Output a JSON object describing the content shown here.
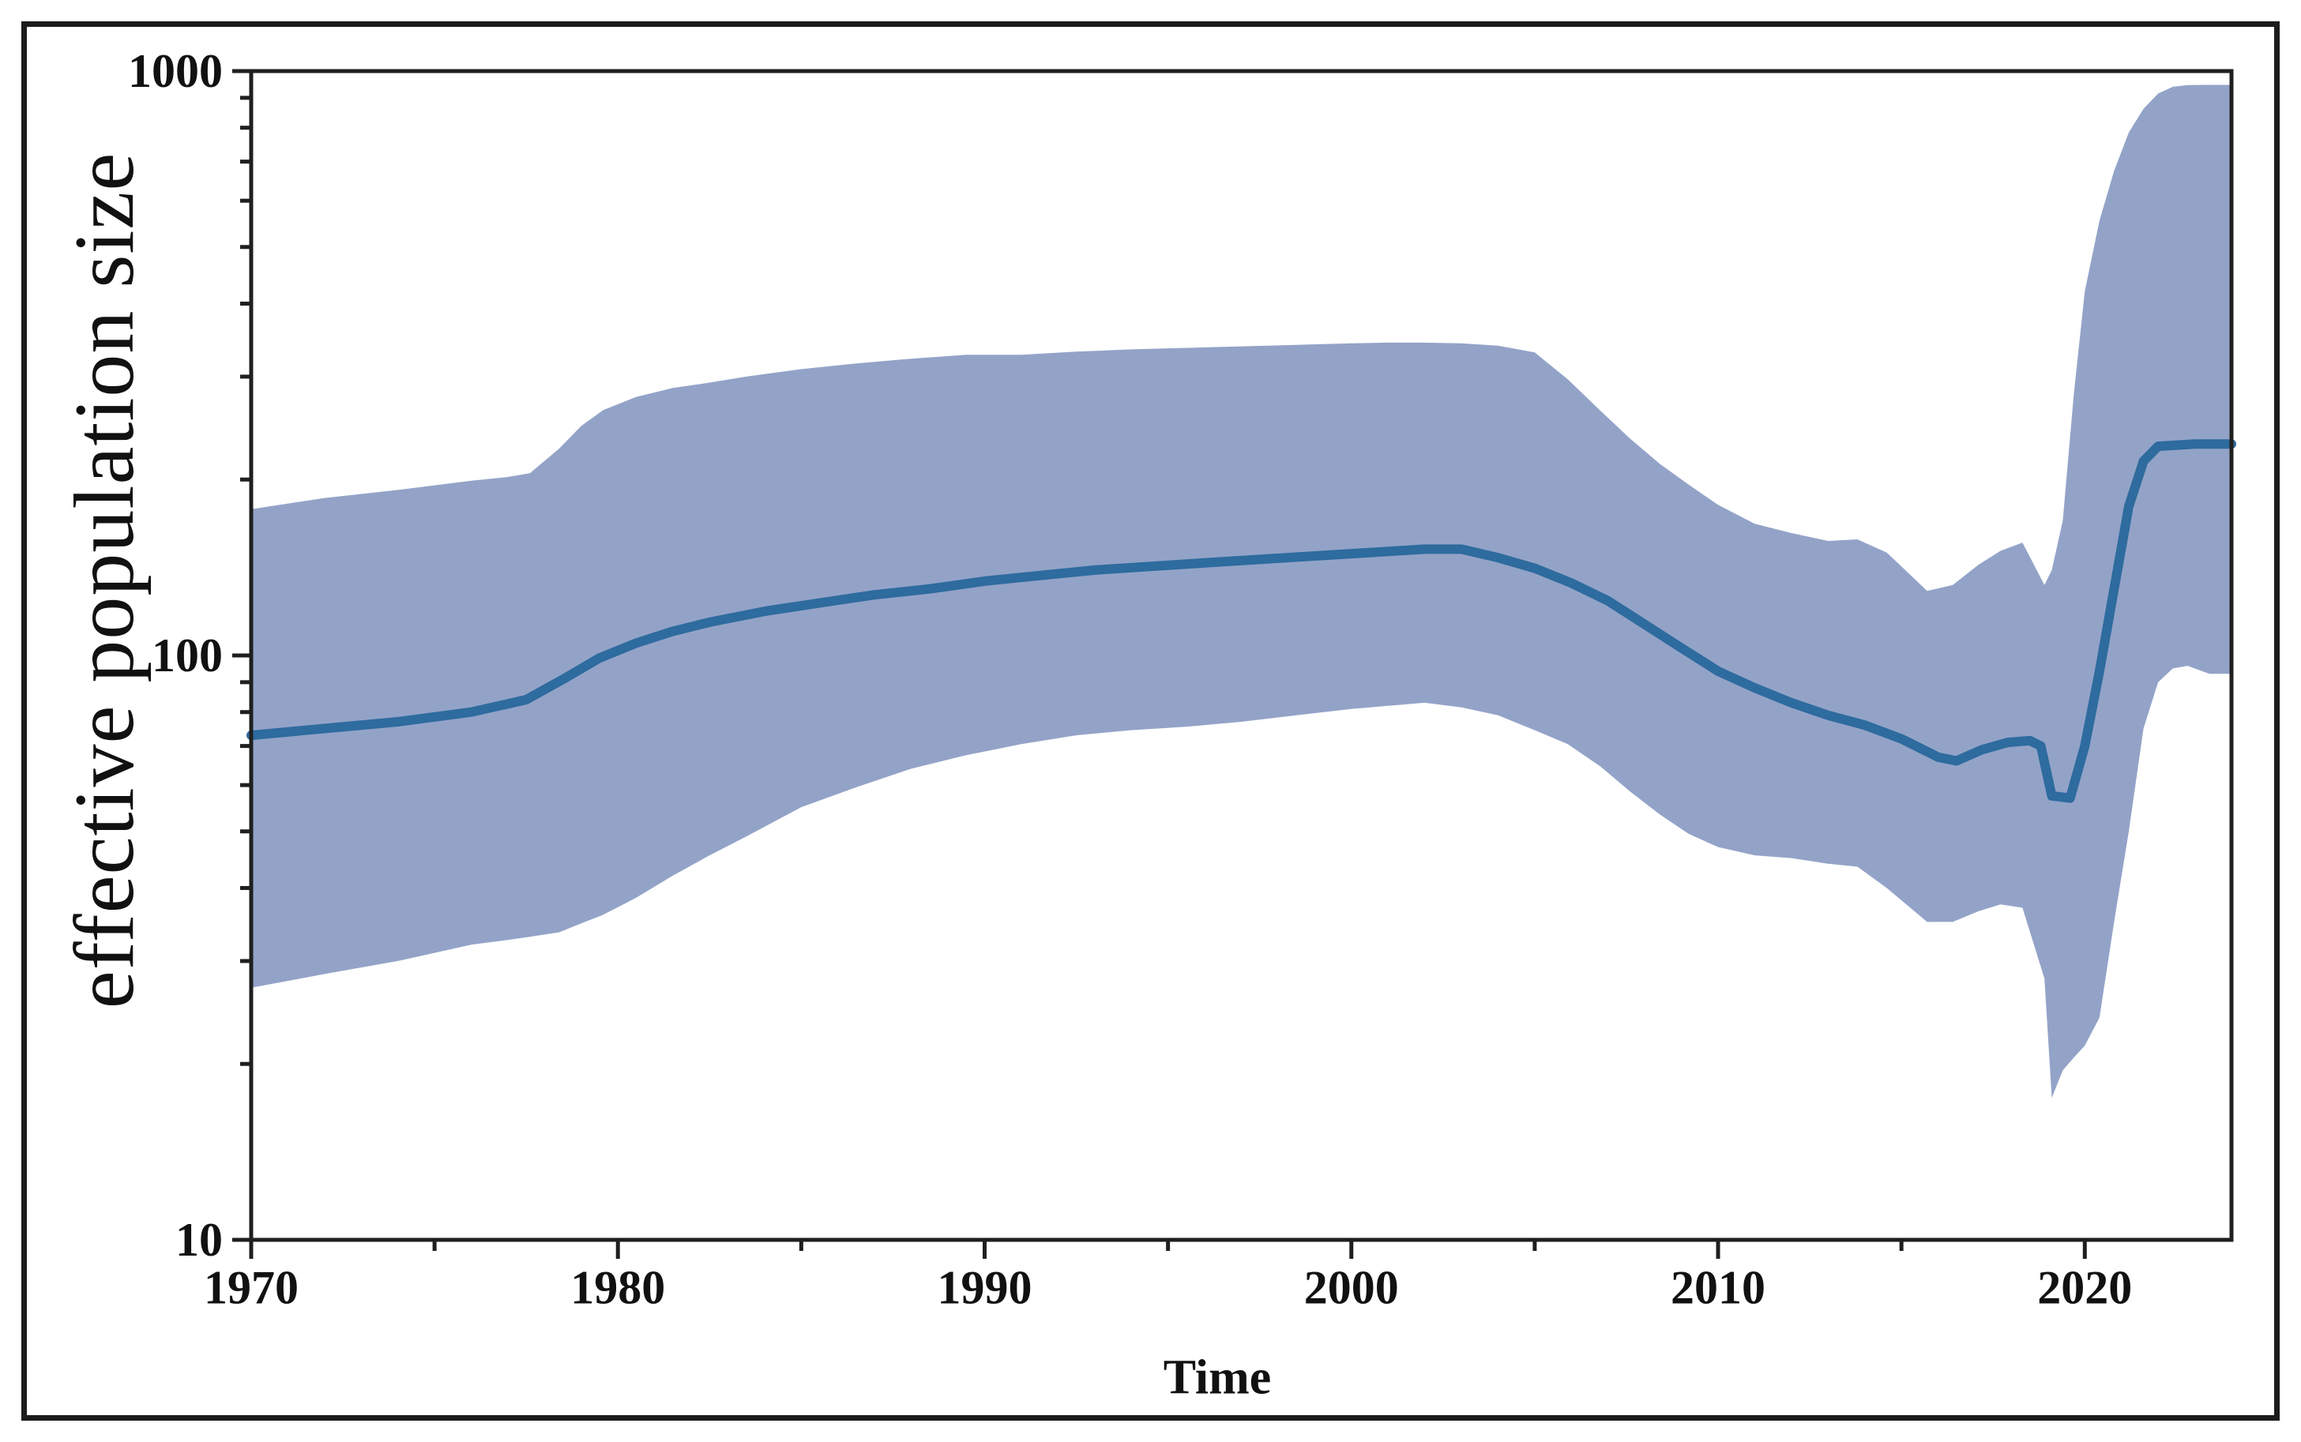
{
  "figure": {
    "background": "#ffffff",
    "border_color": "#1c1c1c",
    "axis_color": "#1f1f1f"
  },
  "chart_data": {
    "type": "area",
    "title": "",
    "xlabel": "Time",
    "ylabel": "effective population size",
    "grid": false,
    "legend": null,
    "x_axis": {
      "scale": "linear",
      "range": [
        1970,
        2024
      ],
      "major_ticks": [
        {
          "value": 1970,
          "label": "1970"
        },
        {
          "value": 1980,
          "label": "1980"
        },
        {
          "value": 1990,
          "label": "1990"
        },
        {
          "value": 2000,
          "label": "2000"
        },
        {
          "value": 2010,
          "label": "2010"
        },
        {
          "value": 2020,
          "label": "2020"
        }
      ],
      "minor_ticks": [
        1975,
        1985,
        1995,
        2005,
        2015
      ]
    },
    "y_axis": {
      "scale": "log10",
      "range": [
        10,
        1000
      ],
      "major_ticks": [
        {
          "value": 1000,
          "label": "1000"
        },
        {
          "value": 100,
          "label": "100"
        },
        {
          "value": 10,
          "label": "10"
        }
      ],
      "minor_ticks": [
        900,
        800,
        700,
        600,
        500,
        400,
        300,
        200,
        90,
        80,
        70,
        60,
        50,
        40,
        30,
        20
      ]
    },
    "series": [
      {
        "id": "credible-interval-band",
        "type": "band",
        "color": "#93a3c8",
        "x": [
          1970,
          1972,
          1974,
          1976,
          1977,
          1977.6,
          1978.4,
          1979,
          1979.6,
          1980.5,
          1981.5,
          1982.5,
          1983.5,
          1985,
          1986.5,
          1988,
          1989.5,
          1991,
          1992.5,
          1994,
          1995.5,
          1997,
          1998.5,
          2000,
          2001,
          2002,
          2003,
          2004,
          2005,
          2005.9,
          2006.8,
          2007.6,
          2008.4,
          2009.2,
          2010,
          2011,
          2012,
          2013,
          2013.8,
          2014.6,
          2015.7,
          2016.4,
          2017.1,
          2017.7,
          2018.3,
          2018.9,
          2019.1,
          2019.4,
          2019.7,
          2020,
          2020.4,
          2020.8,
          2021.2,
          2021.6,
          2022,
          2022.4,
          2022.8,
          2023.4,
          2024
        ],
        "upper": [
          178,
          186,
          192,
          199,
          202,
          205,
          226,
          247,
          263,
          277,
          287,
          293,
          300,
          309,
          316,
          322,
          327,
          327,
          331,
          334,
          336,
          338,
          340,
          342,
          343,
          343,
          342,
          339,
          330,
          297,
          262,
          235,
          213,
          196,
          181,
          168,
          162,
          157,
          158,
          150,
          129,
          132,
          143,
          151,
          156,
          132,
          140,
          170,
          280,
          420,
          555,
          675,
          785,
          862,
          915,
          940,
          946,
          947,
          947
        ],
        "lower": [
          27,
          28.5,
          30,
          32,
          32.6,
          33,
          33.6,
          34.8,
          36,
          38.5,
          42,
          45.5,
          49,
          55,
          59.5,
          64,
          67.5,
          70.5,
          73,
          74.5,
          75.5,
          77,
          79,
          81,
          82,
          83,
          81.5,
          79,
          74.5,
          70.5,
          64.5,
          58.5,
          53.5,
          49.5,
          47,
          45.5,
          45,
          44,
          43.5,
          40,
          35,
          35,
          36.5,
          37.5,
          37,
          28,
          17.5,
          19.5,
          20.5,
          21.5,
          24,
          35,
          50,
          75,
          90,
          95,
          96,
          93,
          93
        ]
      },
      {
        "id": "median-line",
        "type": "line",
        "color": "#2e6b9e",
        "stroke_width": 12,
        "x": [
          1970,
          1972,
          1974,
          1976,
          1977.5,
          1978.5,
          1979.5,
          1980.5,
          1981.5,
          1982.5,
          1984,
          1985.5,
          1987,
          1988.5,
          1990,
          1991.5,
          1993,
          1994.5,
          1996,
          1997.5,
          1999,
          2000.5,
          2002,
          2003,
          2004,
          2005,
          2006,
          2007,
          2008,
          2009,
          2010,
          2011,
          2012,
          2013,
          2014,
          2015,
          2016,
          2016.5,
          2017.2,
          2017.9,
          2018.5,
          2018.8,
          2019.1,
          2019.6,
          2020,
          2020.4,
          2020.8,
          2021.2,
          2021.6,
          2022,
          2023,
          2024
        ],
        "values": [
          73,
          75,
          77,
          80,
          84,
          91,
          99,
          105,
          110,
          114,
          119,
          123,
          127,
          130,
          134,
          137,
          140,
          142,
          144,
          146,
          148,
          150,
          152,
          152,
          147,
          141,
          133,
          124,
          113,
          103,
          94,
          88,
          83,
          79,
          76,
          72,
          67,
          66,
          69,
          71,
          71.5,
          70,
          57.5,
          57,
          70,
          94,
          130,
          180,
          215,
          228,
          230,
          230
        ]
      }
    ]
  }
}
